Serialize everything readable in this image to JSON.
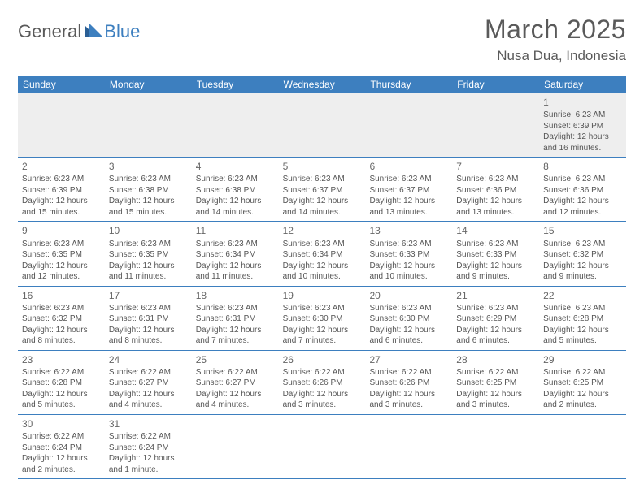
{
  "logo": {
    "text_general": "General",
    "text_blue": "Blue",
    "triangle_color_dark": "#2b5f95",
    "triangle_color_light": "#3d7fbf"
  },
  "header": {
    "month_title": "March 2025",
    "location": "Nusa Dua, Indonesia"
  },
  "colors": {
    "header_bar": "#3d7fbf",
    "row_border": "#3d7fbf",
    "first_week_bg": "#eeeeee",
    "text_body": "#555555",
    "text_header": "#ffffff",
    "text_title": "#5a5a5a"
  },
  "weekdays": [
    "Sunday",
    "Monday",
    "Tuesday",
    "Wednesday",
    "Thursday",
    "Friday",
    "Saturday"
  ],
  "weeks": [
    [
      null,
      null,
      null,
      null,
      null,
      null,
      {
        "n": "1",
        "sunrise": "Sunrise: 6:23 AM",
        "sunset": "Sunset: 6:39 PM",
        "daylight": "Daylight: 12 hours and 16 minutes."
      }
    ],
    [
      {
        "n": "2",
        "sunrise": "Sunrise: 6:23 AM",
        "sunset": "Sunset: 6:39 PM",
        "daylight": "Daylight: 12 hours and 15 minutes."
      },
      {
        "n": "3",
        "sunrise": "Sunrise: 6:23 AM",
        "sunset": "Sunset: 6:38 PM",
        "daylight": "Daylight: 12 hours and 15 minutes."
      },
      {
        "n": "4",
        "sunrise": "Sunrise: 6:23 AM",
        "sunset": "Sunset: 6:38 PM",
        "daylight": "Daylight: 12 hours and 14 minutes."
      },
      {
        "n": "5",
        "sunrise": "Sunrise: 6:23 AM",
        "sunset": "Sunset: 6:37 PM",
        "daylight": "Daylight: 12 hours and 14 minutes."
      },
      {
        "n": "6",
        "sunrise": "Sunrise: 6:23 AM",
        "sunset": "Sunset: 6:37 PM",
        "daylight": "Daylight: 12 hours and 13 minutes."
      },
      {
        "n": "7",
        "sunrise": "Sunrise: 6:23 AM",
        "sunset": "Sunset: 6:36 PM",
        "daylight": "Daylight: 12 hours and 13 minutes."
      },
      {
        "n": "8",
        "sunrise": "Sunrise: 6:23 AM",
        "sunset": "Sunset: 6:36 PM",
        "daylight": "Daylight: 12 hours and 12 minutes."
      }
    ],
    [
      {
        "n": "9",
        "sunrise": "Sunrise: 6:23 AM",
        "sunset": "Sunset: 6:35 PM",
        "daylight": "Daylight: 12 hours and 12 minutes."
      },
      {
        "n": "10",
        "sunrise": "Sunrise: 6:23 AM",
        "sunset": "Sunset: 6:35 PM",
        "daylight": "Daylight: 12 hours and 11 minutes."
      },
      {
        "n": "11",
        "sunrise": "Sunrise: 6:23 AM",
        "sunset": "Sunset: 6:34 PM",
        "daylight": "Daylight: 12 hours and 11 minutes."
      },
      {
        "n": "12",
        "sunrise": "Sunrise: 6:23 AM",
        "sunset": "Sunset: 6:34 PM",
        "daylight": "Daylight: 12 hours and 10 minutes."
      },
      {
        "n": "13",
        "sunrise": "Sunrise: 6:23 AM",
        "sunset": "Sunset: 6:33 PM",
        "daylight": "Daylight: 12 hours and 10 minutes."
      },
      {
        "n": "14",
        "sunrise": "Sunrise: 6:23 AM",
        "sunset": "Sunset: 6:33 PM",
        "daylight": "Daylight: 12 hours and 9 minutes."
      },
      {
        "n": "15",
        "sunrise": "Sunrise: 6:23 AM",
        "sunset": "Sunset: 6:32 PM",
        "daylight": "Daylight: 12 hours and 9 minutes."
      }
    ],
    [
      {
        "n": "16",
        "sunrise": "Sunrise: 6:23 AM",
        "sunset": "Sunset: 6:32 PM",
        "daylight": "Daylight: 12 hours and 8 minutes."
      },
      {
        "n": "17",
        "sunrise": "Sunrise: 6:23 AM",
        "sunset": "Sunset: 6:31 PM",
        "daylight": "Daylight: 12 hours and 8 minutes."
      },
      {
        "n": "18",
        "sunrise": "Sunrise: 6:23 AM",
        "sunset": "Sunset: 6:31 PM",
        "daylight": "Daylight: 12 hours and 7 minutes."
      },
      {
        "n": "19",
        "sunrise": "Sunrise: 6:23 AM",
        "sunset": "Sunset: 6:30 PM",
        "daylight": "Daylight: 12 hours and 7 minutes."
      },
      {
        "n": "20",
        "sunrise": "Sunrise: 6:23 AM",
        "sunset": "Sunset: 6:30 PM",
        "daylight": "Daylight: 12 hours and 6 minutes."
      },
      {
        "n": "21",
        "sunrise": "Sunrise: 6:23 AM",
        "sunset": "Sunset: 6:29 PM",
        "daylight": "Daylight: 12 hours and 6 minutes."
      },
      {
        "n": "22",
        "sunrise": "Sunrise: 6:23 AM",
        "sunset": "Sunset: 6:28 PM",
        "daylight": "Daylight: 12 hours and 5 minutes."
      }
    ],
    [
      {
        "n": "23",
        "sunrise": "Sunrise: 6:22 AM",
        "sunset": "Sunset: 6:28 PM",
        "daylight": "Daylight: 12 hours and 5 minutes."
      },
      {
        "n": "24",
        "sunrise": "Sunrise: 6:22 AM",
        "sunset": "Sunset: 6:27 PM",
        "daylight": "Daylight: 12 hours and 4 minutes."
      },
      {
        "n": "25",
        "sunrise": "Sunrise: 6:22 AM",
        "sunset": "Sunset: 6:27 PM",
        "daylight": "Daylight: 12 hours and 4 minutes."
      },
      {
        "n": "26",
        "sunrise": "Sunrise: 6:22 AM",
        "sunset": "Sunset: 6:26 PM",
        "daylight": "Daylight: 12 hours and 3 minutes."
      },
      {
        "n": "27",
        "sunrise": "Sunrise: 6:22 AM",
        "sunset": "Sunset: 6:26 PM",
        "daylight": "Daylight: 12 hours and 3 minutes."
      },
      {
        "n": "28",
        "sunrise": "Sunrise: 6:22 AM",
        "sunset": "Sunset: 6:25 PM",
        "daylight": "Daylight: 12 hours and 3 minutes."
      },
      {
        "n": "29",
        "sunrise": "Sunrise: 6:22 AM",
        "sunset": "Sunset: 6:25 PM",
        "daylight": "Daylight: 12 hours and 2 minutes."
      }
    ],
    [
      {
        "n": "30",
        "sunrise": "Sunrise: 6:22 AM",
        "sunset": "Sunset: 6:24 PM",
        "daylight": "Daylight: 12 hours and 2 minutes."
      },
      {
        "n": "31",
        "sunrise": "Sunrise: 6:22 AM",
        "sunset": "Sunset: 6:24 PM",
        "daylight": "Daylight: 12 hours and 1 minute."
      },
      null,
      null,
      null,
      null,
      null
    ]
  ]
}
